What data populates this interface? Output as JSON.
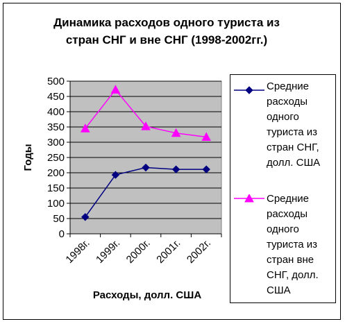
{
  "chart_data": {
    "type": "line",
    "title_line1": "Динамика расходов одного туриста из",
    "title_line2": "стран СНГ и вне СНГ (1998-2002гг.)",
    "xlabel": "Расходы, долл. США",
    "ylabel": "Годы",
    "categories": [
      "1998г.",
      "1999г.",
      "2000г.",
      "2001г.",
      "2002г."
    ],
    "ylim": [
      0,
      500
    ],
    "yticks": [
      0,
      50,
      100,
      150,
      200,
      250,
      300,
      350,
      400,
      450,
      500
    ],
    "grid": true,
    "legend_position": "right",
    "series": [
      {
        "name": "Средние расходы одного туриста из стран СНГ, долл. США",
        "name_lines": [
          "Средние",
          "расходы",
          "одного",
          "туриста из",
          "стран СНГ,",
          "долл. США"
        ],
        "values": [
          55,
          193,
          217,
          211,
          211
        ],
        "color": "#000080",
        "marker": "diamond"
      },
      {
        "name": "Средние расходы одного туриста из стран вне СНГ, долл. США",
        "name_lines": [
          "Средние",
          "расходы",
          "одного",
          "туриста из",
          "стран вне",
          "СНГ, долл.",
          "США"
        ],
        "values": [
          345,
          472,
          352,
          330,
          317
        ],
        "color": "#FF00FF",
        "marker": "triangle"
      }
    ],
    "plot_background": "#C0C0C0"
  }
}
